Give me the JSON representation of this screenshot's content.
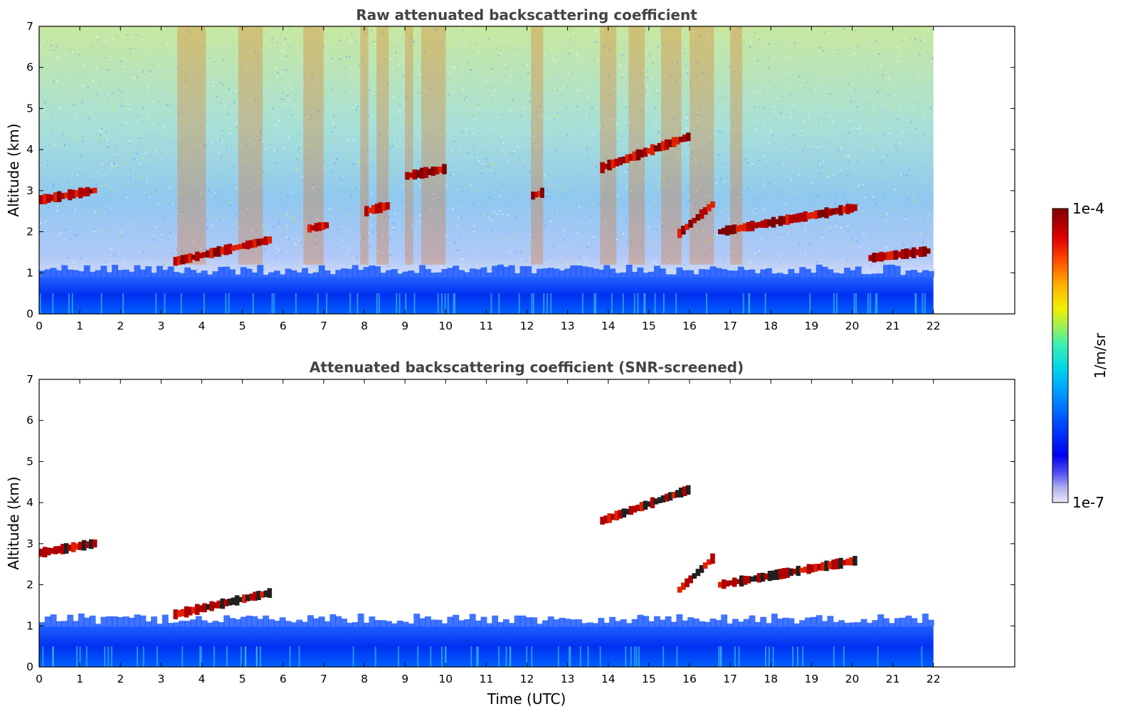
{
  "chart_data": [
    {
      "type": "heatmap",
      "title": "Raw attenuated backscattering coefficient",
      "xlabel": "",
      "ylabel": "Altitude (km)",
      "xlim": [
        0,
        24
      ],
      "ylim": [
        0,
        7
      ],
      "x_ticks": [
        "0",
        "1",
        "2",
        "3",
        "4",
        "5",
        "6",
        "7",
        "8",
        "9",
        "10",
        "11",
        "12",
        "13",
        "14",
        "15",
        "16",
        "17",
        "18",
        "19",
        "20",
        "21",
        "22"
      ],
      "y_ticks": [
        "0",
        "1",
        "2",
        "3",
        "4",
        "5",
        "6",
        "7"
      ],
      "data_extent_hours": [
        0,
        22
      ],
      "features": [
        {
          "kind": "boundary_layer",
          "x": [
            0,
            22
          ],
          "y": [
            0,
            0.9
          ]
        },
        {
          "kind": "cloud_layer",
          "x": [
            0,
            1.4
          ],
          "y": [
            2.7,
            3.1
          ]
        },
        {
          "kind": "cloud_layer",
          "x": [
            3.3,
            5.7
          ],
          "y": [
            1.1,
            2.0
          ]
        },
        {
          "kind": "cloud_layer",
          "x": [
            6.6,
            7.1
          ],
          "y": [
            2.05,
            2.2
          ]
        },
        {
          "kind": "cloud_layer",
          "x": [
            8.0,
            8.6
          ],
          "y": [
            2.45,
            2.7
          ]
        },
        {
          "kind": "cloud_layer",
          "x": [
            9.0,
            10.0
          ],
          "y": [
            3.3,
            3.6
          ]
        },
        {
          "kind": "cloud_layer",
          "x": [
            12.1,
            12.4
          ],
          "y": [
            2.85,
            3.0
          ]
        },
        {
          "kind": "cloud_layer",
          "x": [
            13.8,
            16.0
          ],
          "y": [
            3.3,
            4.6
          ]
        },
        {
          "kind": "cloud_layer",
          "x": [
            15.7,
            16.6
          ],
          "y": [
            1.7,
            3.0
          ]
        },
        {
          "kind": "cloud_layer",
          "x": [
            16.7,
            20.1
          ],
          "y": [
            1.8,
            2.8
          ]
        },
        {
          "kind": "cloud_layer",
          "x": [
            20.4,
            21.9
          ],
          "y": [
            1.3,
            1.6
          ]
        }
      ]
    },
    {
      "type": "heatmap",
      "title": "Attenuated backscattering coefficient (SNR-screened)",
      "xlabel": "Time (UTC)",
      "ylabel": "Altitude (km)",
      "xlim": [
        0,
        24
      ],
      "ylim": [
        0,
        7
      ],
      "x_ticks": [
        "0",
        "1",
        "2",
        "3",
        "4",
        "5",
        "6",
        "7",
        "8",
        "9",
        "10",
        "11",
        "12",
        "13",
        "14",
        "15",
        "16",
        "17",
        "18",
        "19",
        "20",
        "21",
        "22"
      ],
      "y_ticks": [
        "0",
        "1",
        "2",
        "3",
        "4",
        "5",
        "6",
        "7"
      ],
      "data_extent_hours": [
        0,
        22
      ],
      "features": [
        {
          "kind": "boundary_layer",
          "x": [
            0,
            22
          ],
          "y": [
            0,
            1.0
          ]
        },
        {
          "kind": "cloud_layer",
          "x": [
            0,
            1.4
          ],
          "y": [
            2.7,
            3.1
          ]
        },
        {
          "kind": "cloud_layer",
          "x": [
            3.3,
            5.7
          ],
          "y": [
            1.1,
            2.0
          ]
        },
        {
          "kind": "cloud_layer",
          "x": [
            13.8,
            16.0
          ],
          "y": [
            3.3,
            4.6
          ]
        },
        {
          "kind": "cloud_layer",
          "x": [
            15.7,
            16.6
          ],
          "y": [
            1.6,
            3.0
          ]
        },
        {
          "kind": "cloud_layer",
          "x": [
            16.7,
            20.1
          ],
          "y": [
            1.8,
            2.8
          ]
        }
      ]
    }
  ],
  "colorbar": {
    "label": "1/m/sr",
    "max_label": "1e-4",
    "min_label": "1e-7",
    "scale": "log",
    "range": [
      1e-07,
      0.0001
    ],
    "colormap": [
      "#e8e8f8",
      "#b0b0f0",
      "#6060f0",
      "#0000f0",
      "#0040ff",
      "#0090ff",
      "#00d0f0",
      "#30f0c0",
      "#90f060",
      "#e0f000",
      "#ffd000",
      "#ff9000",
      "#ff4000",
      "#e00000",
      "#800000"
    ]
  }
}
